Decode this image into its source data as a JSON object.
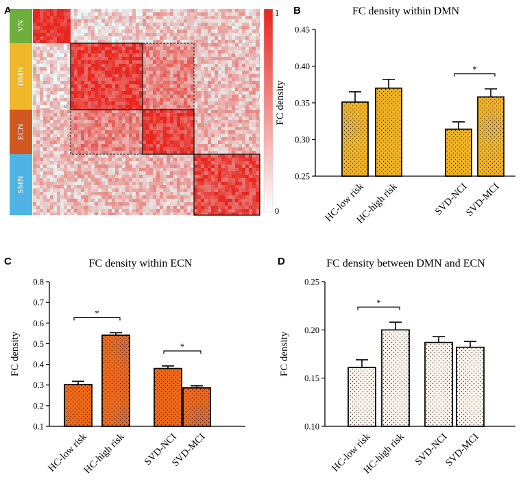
{
  "chart_data": [
    {
      "panel": "A",
      "type": "heatmap",
      "networks": [
        "VN",
        "DMN",
        "ECN",
        "SMN"
      ],
      "network_colors": [
        "#6fae3a",
        "#f0b72a",
        "#d2571f",
        "#4fb4e3"
      ],
      "colorbar": {
        "max_label": "1",
        "min_label": "0",
        "color_high": "#e8251e",
        "color_low": "#ffffff"
      }
    },
    {
      "panel": "B",
      "type": "bar",
      "title": "FC density within DMN",
      "ylabel": "FC density",
      "ylim": [
        0.25,
        0.45
      ],
      "yticks": [
        0.25,
        0.3,
        0.35,
        0.4,
        0.45
      ],
      "ytick_labels": [
        "0.25",
        "0.30",
        "0.35",
        "0.40",
        "0.45"
      ],
      "categories": [
        "HC-low risk",
        "HC-high risk",
        "SVD-NCI",
        "SVD-MCI"
      ],
      "values": [
        0.351,
        0.37,
        0.314,
        0.358
      ],
      "errors": [
        0.014,
        0.012,
        0.01,
        0.011
      ],
      "bar_color": "#f0b429",
      "significance": [
        {
          "pair": [
            2,
            3
          ],
          "label": "*"
        }
      ]
    },
    {
      "panel": "C",
      "type": "bar",
      "title": "FC density within ECN",
      "ylabel": "FC density",
      "ylim": [
        0.1,
        0.8
      ],
      "yticks": [
        0.1,
        0.2,
        0.3,
        0.4,
        0.5,
        0.6,
        0.7,
        0.8
      ],
      "ytick_labels": [
        "0.1",
        "0.2",
        "0.3",
        "0.4",
        "0.5",
        "0.6",
        "0.7",
        "0.8"
      ],
      "categories": [
        "HC-low risk",
        "HC-high risk",
        "SVD-NCI",
        "SVD-MCI"
      ],
      "values": [
        0.303,
        0.541,
        0.38,
        0.286
      ],
      "errors": [
        0.015,
        0.012,
        0.012,
        0.01
      ],
      "bar_color": "#ee6a1c",
      "significance": [
        {
          "pair": [
            0,
            1
          ],
          "label": "*"
        },
        {
          "pair": [
            2,
            3
          ],
          "label": "*"
        }
      ]
    },
    {
      "panel": "D",
      "type": "bar",
      "title": "FC density between DMN and ECN",
      "ylabel": "FC density",
      "ylim": [
        0.1,
        0.25
      ],
      "yticks": [
        0.1,
        0.15,
        0.2,
        0.25
      ],
      "ytick_labels": [
        "0.10",
        "0.15",
        "0.20",
        "0.25"
      ],
      "categories": [
        "HC-low risk",
        "HC-high risk",
        "SVD-NCI",
        "SVD-MCI"
      ],
      "values": [
        0.161,
        0.2,
        0.187,
        0.182
      ],
      "errors": [
        0.008,
        0.008,
        0.006,
        0.006
      ],
      "bar_color": "#fbf4ec",
      "significance": [
        {
          "pair": [
            0,
            1
          ],
          "label": "*"
        }
      ]
    }
  ]
}
